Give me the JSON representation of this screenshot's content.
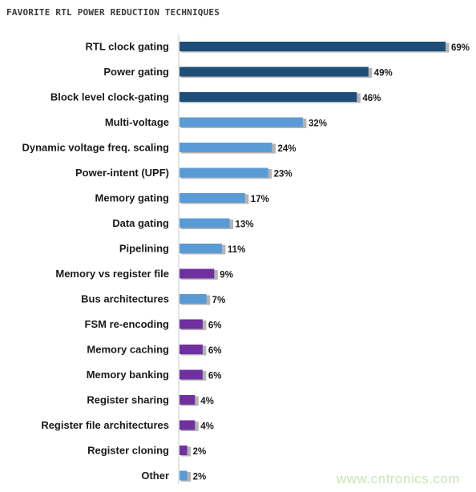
{
  "title": "FAVORITE RTL POWER REDUCTION TECHNIQUES",
  "watermark": "www.cntronics.com",
  "colors": {
    "dark_blue": "#1f4e79",
    "light_blue": "#5b9bd5",
    "purple": "#7030a0",
    "shadow": "#b4b4b4",
    "axis": "#c8c8c8"
  },
  "chart_data": {
    "type": "bar",
    "orientation": "horizontal",
    "title": "FAVORITE RTL POWER REDUCTION TECHNIQUES",
    "categories": [
      "RTL clock gating",
      "Power gating",
      "Block level clock-gating",
      "Multi-voltage",
      "Dynamic voltage freq. scaling",
      "Power-intent (UPF)",
      "Memory gating",
      "Data gating",
      "Pipelining",
      "Memory vs register file",
      "Bus architectures",
      "FSM re-encoding",
      "Memory caching",
      "Memory banking",
      "Register sharing",
      "Register file architectures",
      "Register cloning",
      "Other"
    ],
    "values": [
      69,
      49,
      46,
      32,
      24,
      23,
      17,
      13,
      11,
      9,
      7,
      6,
      6,
      6,
      4,
      4,
      2,
      2
    ],
    "value_labels": [
      "69%",
      "49%",
      "46%",
      "32%",
      "24%",
      "23%",
      "17%",
      "13%",
      "11%",
      "9%",
      "7%",
      "6%",
      "6%",
      "6%",
      "4%",
      "4%",
      "2%",
      "2%"
    ],
    "bar_colors": [
      "#1f4e79",
      "#1f4e79",
      "#1f4e79",
      "#5b9bd5",
      "#5b9bd5",
      "#5b9bd5",
      "#5b9bd5",
      "#5b9bd5",
      "#5b9bd5",
      "#7030a0",
      "#5b9bd5",
      "#7030a0",
      "#7030a0",
      "#7030a0",
      "#7030a0",
      "#7030a0",
      "#7030a0",
      "#5b9bd5"
    ],
    "unit": "%",
    "xlim": [
      0,
      69
    ],
    "grid": false,
    "legend": "none"
  }
}
